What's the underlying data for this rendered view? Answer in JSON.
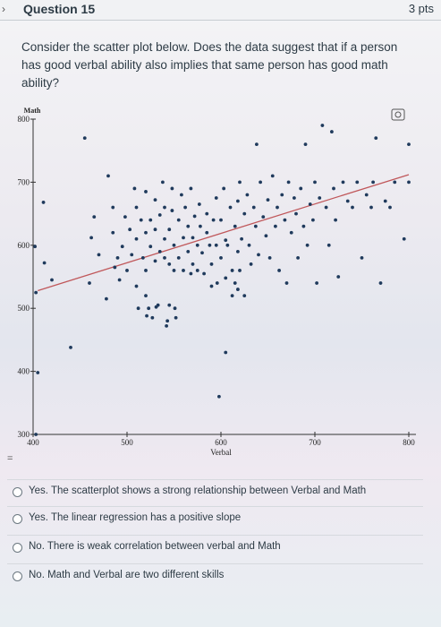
{
  "header": {
    "nav_arrow": "›",
    "title": "Question 15",
    "points": "3 pts"
  },
  "question": {
    "text": "Consider the scatter plot below. Does the data suggest that if a person has good verbal ability also implies that same person has good math ability?"
  },
  "chart_data": {
    "type": "scatter",
    "xlabel": "Verbal",
    "ylabel": "Math",
    "xlim": [
      400,
      800
    ],
    "ylim": [
      300,
      800
    ],
    "xticks": [
      "400",
      "500",
      "600",
      "700",
      "800"
    ],
    "yticks": [
      "300",
      "400",
      "500",
      "600",
      "700",
      "800"
    ],
    "point_color": "#1f3a5c",
    "trend_color": "#c0575a",
    "trendline": {
      "x": [
        405,
        800
      ],
      "y": [
        528,
        712
      ]
    },
    "points": [
      {
        "x": 403,
        "y": 300
      },
      {
        "x": 402,
        "y": 598
      },
      {
        "x": 403,
        "y": 525
      },
      {
        "x": 405,
        "y": 398
      },
      {
        "x": 411,
        "y": 668
      },
      {
        "x": 412,
        "y": 572
      },
      {
        "x": 420,
        "y": 545
      },
      {
        "x": 440,
        "y": 438
      },
      {
        "x": 455,
        "y": 770
      },
      {
        "x": 460,
        "y": 540
      },
      {
        "x": 462,
        "y": 612
      },
      {
        "x": 465,
        "y": 645
      },
      {
        "x": 470,
        "y": 585
      },
      {
        "x": 478,
        "y": 515
      },
      {
        "x": 480,
        "y": 710
      },
      {
        "x": 485,
        "y": 660
      },
      {
        "x": 485,
        "y": 620
      },
      {
        "x": 487,
        "y": 565
      },
      {
        "x": 490,
        "y": 580
      },
      {
        "x": 492,
        "y": 545
      },
      {
        "x": 495,
        "y": 598
      },
      {
        "x": 498,
        "y": 645
      },
      {
        "x": 500,
        "y": 560
      },
      {
        "x": 503,
        "y": 625
      },
      {
        "x": 505,
        "y": 585
      },
      {
        "x": 508,
        "y": 690
      },
      {
        "x": 510,
        "y": 610
      },
      {
        "x": 510,
        "y": 660
      },
      {
        "x": 510,
        "y": 535
      },
      {
        "x": 512,
        "y": 500
      },
      {
        "x": 515,
        "y": 640
      },
      {
        "x": 517,
        "y": 580
      },
      {
        "x": 520,
        "y": 685
      },
      {
        "x": 520,
        "y": 620
      },
      {
        "x": 520,
        "y": 560
      },
      {
        "x": 520,
        "y": 520
      },
      {
        "x": 521,
        "y": 488
      },
      {
        "x": 523,
        "y": 500
      },
      {
        "x": 525,
        "y": 598
      },
      {
        "x": 525,
        "y": 640
      },
      {
        "x": 527,
        "y": 485
      },
      {
        "x": 530,
        "y": 672
      },
      {
        "x": 530,
        "y": 625
      },
      {
        "x": 530,
        "y": 575
      },
      {
        "x": 531,
        "y": 502
      },
      {
        "x": 533,
        "y": 505
      },
      {
        "x": 535,
        "y": 590
      },
      {
        "x": 535,
        "y": 648
      },
      {
        "x": 538,
        "y": 700
      },
      {
        "x": 540,
        "y": 580
      },
      {
        "x": 540,
        "y": 610
      },
      {
        "x": 540,
        "y": 660
      },
      {
        "x": 542,
        "y": 472
      },
      {
        "x": 543,
        "y": 480
      },
      {
        "x": 545,
        "y": 505
      },
      {
        "x": 545,
        "y": 570
      },
      {
        "x": 545,
        "y": 625
      },
      {
        "x": 548,
        "y": 690
      },
      {
        "x": 548,
        "y": 655
      },
      {
        "x": 550,
        "y": 600
      },
      {
        "x": 550,
        "y": 560
      },
      {
        "x": 551,
        "y": 500
      },
      {
        "x": 552,
        "y": 485
      },
      {
        "x": 555,
        "y": 640
      },
      {
        "x": 555,
        "y": 580
      },
      {
        "x": 558,
        "y": 680
      },
      {
        "x": 560,
        "y": 612
      },
      {
        "x": 560,
        "y": 560
      },
      {
        "x": 562,
        "y": 660
      },
      {
        "x": 565,
        "y": 590
      },
      {
        "x": 565,
        "y": 630
      },
      {
        "x": 568,
        "y": 690
      },
      {
        "x": 568,
        "y": 555
      },
      {
        "x": 570,
        "y": 612
      },
      {
        "x": 570,
        "y": 570
      },
      {
        "x": 572,
        "y": 646
      },
      {
        "x": 575,
        "y": 600
      },
      {
        "x": 575,
        "y": 560
      },
      {
        "x": 577,
        "y": 665
      },
      {
        "x": 578,
        "y": 630
      },
      {
        "x": 580,
        "y": 588
      },
      {
        "x": 582,
        "y": 555
      },
      {
        "x": 585,
        "y": 620
      },
      {
        "x": 585,
        "y": 650
      },
      {
        "x": 588,
        "y": 600
      },
      {
        "x": 590,
        "y": 570
      },
      {
        "x": 590,
        "y": 535
      },
      {
        "x": 592,
        "y": 640
      },
      {
        "x": 595,
        "y": 600
      },
      {
        "x": 595,
        "y": 675
      },
      {
        "x": 596,
        "y": 540
      },
      {
        "x": 600,
        "y": 640
      },
      {
        "x": 600,
        "y": 580
      },
      {
        "x": 603,
        "y": 690
      },
      {
        "x": 605,
        "y": 608
      },
      {
        "x": 605,
        "y": 548
      },
      {
        "x": 607,
        "y": 600
      },
      {
        "x": 610,
        "y": 660
      },
      {
        "x": 612,
        "y": 560
      },
      {
        "x": 615,
        "y": 630
      },
      {
        "x": 615,
        "y": 540
      },
      {
        "x": 618,
        "y": 590
      },
      {
        "x": 618,
        "y": 670
      },
      {
        "x": 620,
        "y": 700
      },
      {
        "x": 620,
        "y": 560
      },
      {
        "x": 622,
        "y": 610
      },
      {
        "x": 625,
        "y": 650
      },
      {
        "x": 625,
        "y": 520
      },
      {
        "x": 628,
        "y": 680
      },
      {
        "x": 630,
        "y": 600
      },
      {
        "x": 632,
        "y": 570
      },
      {
        "x": 635,
        "y": 660
      },
      {
        "x": 637,
        "y": 630
      },
      {
        "x": 638,
        "y": 760
      },
      {
        "x": 640,
        "y": 585
      },
      {
        "x": 642,
        "y": 700
      },
      {
        "x": 645,
        "y": 645
      },
      {
        "x": 648,
        "y": 615
      },
      {
        "x": 650,
        "y": 672
      },
      {
        "x": 652,
        "y": 580
      },
      {
        "x": 655,
        "y": 710
      },
      {
        "x": 658,
        "y": 630
      },
      {
        "x": 660,
        "y": 660
      },
      {
        "x": 662,
        "y": 560
      },
      {
        "x": 665,
        "y": 680
      },
      {
        "x": 668,
        "y": 640
      },
      {
        "x": 670,
        "y": 540
      },
      {
        "x": 672,
        "y": 700
      },
      {
        "x": 675,
        "y": 620
      },
      {
        "x": 678,
        "y": 675
      },
      {
        "x": 680,
        "y": 650
      },
      {
        "x": 682,
        "y": 580
      },
      {
        "x": 685,
        "y": 690
      },
      {
        "x": 688,
        "y": 630
      },
      {
        "x": 690,
        "y": 760
      },
      {
        "x": 692,
        "y": 600
      },
      {
        "x": 695,
        "y": 665
      },
      {
        "x": 698,
        "y": 640
      },
      {
        "x": 700,
        "y": 700
      },
      {
        "x": 702,
        "y": 540
      },
      {
        "x": 705,
        "y": 675
      },
      {
        "x": 708,
        "y": 790
      },
      {
        "x": 712,
        "y": 660
      },
      {
        "x": 715,
        "y": 600
      },
      {
        "x": 718,
        "y": 780
      },
      {
        "x": 720,
        "y": 690
      },
      {
        "x": 722,
        "y": 640
      },
      {
        "x": 725,
        "y": 550
      },
      {
        "x": 730,
        "y": 700
      },
      {
        "x": 735,
        "y": 670
      },
      {
        "x": 740,
        "y": 660
      },
      {
        "x": 745,
        "y": 700
      },
      {
        "x": 750,
        "y": 580
      },
      {
        "x": 755,
        "y": 680
      },
      {
        "x": 760,
        "y": 660
      },
      {
        "x": 762,
        "y": 700
      },
      {
        "x": 765,
        "y": 770
      },
      {
        "x": 770,
        "y": 540
      },
      {
        "x": 775,
        "y": 670
      },
      {
        "x": 780,
        "y": 660
      },
      {
        "x": 785,
        "y": 700
      },
      {
        "x": 795,
        "y": 610
      },
      {
        "x": 800,
        "y": 760
      },
      {
        "x": 800,
        "y": 700
      },
      {
        "x": 598,
        "y": 360
      },
      {
        "x": 605,
        "y": 430
      },
      {
        "x": 612,
        "y": 520
      },
      {
        "x": 618,
        "y": 530
      }
    ]
  },
  "answers": [
    {
      "label": "Yes. The scatterplot shows a strong relationship between Verbal and Math"
    },
    {
      "label": "Yes. The linear regression has a positive slope"
    },
    {
      "label": "No. There is weak correlation between verbal and Math"
    },
    {
      "label": "No. Math and Verbal are two different skills"
    }
  ],
  "misc": {
    "equals_mark": "=",
    "image_icon": "image-expand-icon"
  }
}
